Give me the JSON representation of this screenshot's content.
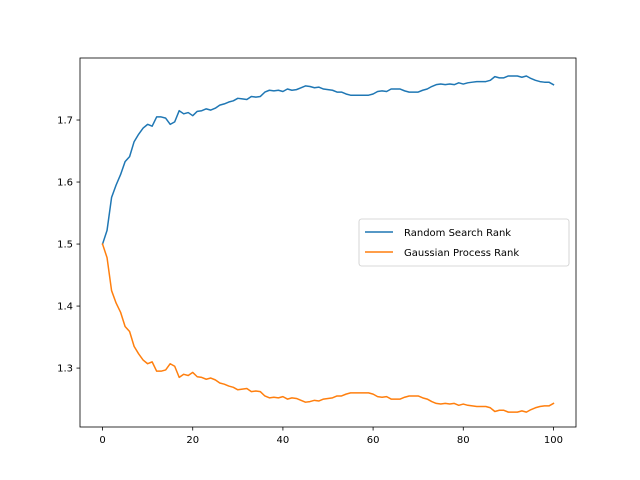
{
  "chart_data": {
    "type": "line",
    "title": "",
    "xlabel": "",
    "ylabel": "",
    "xlim": [
      -5,
      105
    ],
    "ylim": [
      1.205,
      1.8
    ],
    "xticks": [
      0,
      20,
      40,
      60,
      80,
      100
    ],
    "yticks": [
      1.3,
      1.4,
      1.5,
      1.6,
      1.7
    ],
    "ytick_labels": [
      "1.3",
      "1.4",
      "1.5",
      "1.6",
      "1.7"
    ],
    "grid": false,
    "legend_position": "center-right",
    "series": [
      {
        "name": "Random Search Rank",
        "color": "#1f77b4",
        "x": [
          0,
          1,
          2,
          3,
          4,
          5,
          6,
          7,
          8,
          9,
          10,
          11,
          12,
          13,
          14,
          15,
          16,
          17,
          18,
          19,
          20,
          21,
          22,
          23,
          24,
          25,
          26,
          27,
          28,
          29,
          30,
          31,
          32,
          33,
          34,
          35,
          36,
          37,
          38,
          39,
          40,
          41,
          42,
          43,
          44,
          45,
          46,
          47,
          48,
          49,
          50,
          51,
          52,
          53,
          54,
          55,
          56,
          57,
          58,
          59,
          60,
          61,
          62,
          63,
          64,
          65,
          66,
          67,
          68,
          69,
          70,
          71,
          72,
          73,
          74,
          75,
          76,
          77,
          78,
          79,
          80,
          81,
          82,
          83,
          84,
          85,
          86,
          87,
          88,
          89,
          90,
          91,
          92,
          93,
          94,
          95,
          96,
          97,
          98,
          99,
          100
        ],
        "values": [
          1.5,
          1.522,
          1.575,
          1.595,
          1.612,
          1.633,
          1.641,
          1.665,
          1.677,
          1.687,
          1.693,
          1.69,
          1.705,
          1.705,
          1.703,
          1.693,
          1.697,
          1.715,
          1.71,
          1.712,
          1.707,
          1.714,
          1.715,
          1.718,
          1.716,
          1.719,
          1.724,
          1.726,
          1.729,
          1.731,
          1.735,
          1.734,
          1.733,
          1.738,
          1.737,
          1.738,
          1.745,
          1.748,
          1.747,
          1.748,
          1.746,
          1.75,
          1.748,
          1.749,
          1.752,
          1.755,
          1.754,
          1.752,
          1.753,
          1.75,
          1.749,
          1.748,
          1.745,
          1.745,
          1.742,
          1.74,
          1.74,
          1.74,
          1.74,
          1.74,
          1.742,
          1.746,
          1.747,
          1.746,
          1.75,
          1.75,
          1.75,
          1.747,
          1.745,
          1.745,
          1.745,
          1.748,
          1.75,
          1.754,
          1.757,
          1.758,
          1.757,
          1.758,
          1.757,
          1.76,
          1.758,
          1.76,
          1.761,
          1.762,
          1.762,
          1.762,
          1.764,
          1.77,
          1.768,
          1.768,
          1.771,
          1.771,
          1.771,
          1.769,
          1.771,
          1.767,
          1.764,
          1.762,
          1.761,
          1.761,
          1.757
        ]
      },
      {
        "name": "Gaussian Process Rank",
        "color": "#ff7f0e",
        "x": [
          0,
          1,
          2,
          3,
          4,
          5,
          6,
          7,
          8,
          9,
          10,
          11,
          12,
          13,
          14,
          15,
          16,
          17,
          18,
          19,
          20,
          21,
          22,
          23,
          24,
          25,
          26,
          27,
          28,
          29,
          30,
          31,
          32,
          33,
          34,
          35,
          36,
          37,
          38,
          39,
          40,
          41,
          42,
          43,
          44,
          45,
          46,
          47,
          48,
          49,
          50,
          51,
          52,
          53,
          54,
          55,
          56,
          57,
          58,
          59,
          60,
          61,
          62,
          63,
          64,
          65,
          66,
          67,
          68,
          69,
          70,
          71,
          72,
          73,
          74,
          75,
          76,
          77,
          78,
          79,
          80,
          81,
          82,
          83,
          84,
          85,
          86,
          87,
          88,
          89,
          90,
          91,
          92,
          93,
          94,
          95,
          96,
          97,
          98,
          99,
          100
        ],
        "values": [
          1.5,
          1.478,
          1.425,
          1.405,
          1.39,
          1.367,
          1.359,
          1.335,
          1.323,
          1.313,
          1.307,
          1.31,
          1.295,
          1.295,
          1.297,
          1.307,
          1.303,
          1.285,
          1.29,
          1.288,
          1.293,
          1.286,
          1.285,
          1.282,
          1.284,
          1.281,
          1.276,
          1.274,
          1.271,
          1.269,
          1.265,
          1.266,
          1.267,
          1.262,
          1.263,
          1.262,
          1.255,
          1.252,
          1.253,
          1.252,
          1.254,
          1.25,
          1.252,
          1.251,
          1.248,
          1.245,
          1.246,
          1.248,
          1.247,
          1.25,
          1.251,
          1.252,
          1.255,
          1.255,
          1.258,
          1.26,
          1.26,
          1.26,
          1.26,
          1.26,
          1.258,
          1.254,
          1.253,
          1.254,
          1.25,
          1.25,
          1.25,
          1.253,
          1.255,
          1.255,
          1.255,
          1.252,
          1.25,
          1.246,
          1.243,
          1.242,
          1.243,
          1.242,
          1.243,
          1.24,
          1.242,
          1.24,
          1.239,
          1.238,
          1.238,
          1.238,
          1.236,
          1.23,
          1.232,
          1.232,
          1.229,
          1.229,
          1.229,
          1.231,
          1.229,
          1.233,
          1.236,
          1.238,
          1.239,
          1.239,
          1.243
        ]
      }
    ]
  }
}
